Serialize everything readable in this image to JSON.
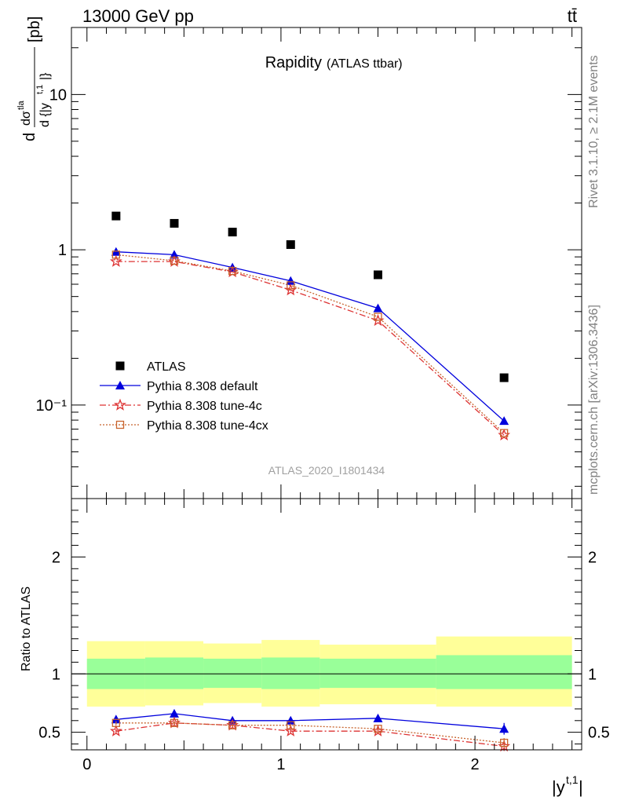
{
  "header": {
    "left": "13000 GeV pp",
    "right": "tt̄"
  },
  "side_text": {
    "top": "Rivet 3.1.10, ≥ 2.1M events",
    "bottom": "mcplots.cern.ch [arXiv:1306.3436]"
  },
  "colors": {
    "atlas": "#000000",
    "default": "#0000dd",
    "tune4c": "#dd3333",
    "tune4cx": "#c8642d",
    "band_inner": "#99ff99",
    "band_outer": "#ffff99"
  },
  "chart_data": [
    {
      "type": "scatter",
      "title": "Rapidity",
      "subtitle": "(ATLAS ttbar)",
      "ylabel": "dσ^{tla}/d{|y^{t,1}|} [pb]",
      "yscale": "log",
      "ylim": [
        0.025,
        27
      ],
      "xlim": [
        -0.08,
        2.55
      ],
      "y_ticks": [
        0.1,
        1,
        10
      ],
      "y_tick_labels": [
        "10⁻¹",
        "1",
        "10"
      ],
      "watermark": "ATLAS_2020_I1801434",
      "legend_position": "bottom-left",
      "x": [
        0.15,
        0.45,
        0.75,
        1.05,
        1.5,
        2.15
      ],
      "x_bins": [
        [
          0,
          0.3
        ],
        [
          0.3,
          0.6
        ],
        [
          0.6,
          0.9
        ],
        [
          0.9,
          1.2
        ],
        [
          1.2,
          1.8
        ],
        [
          1.8,
          2.5
        ]
      ],
      "series": [
        {
          "name": "ATLAS",
          "key": "atlas",
          "marker": "square",
          "values": [
            1.65,
            1.48,
            1.3,
            1.08,
            0.69,
            0.15
          ]
        },
        {
          "name": "Pythia 8.308 default",
          "key": "default",
          "marker": "triangle",
          "line": "solid",
          "values": [
            0.97,
            0.93,
            0.77,
            0.63,
            0.42,
            0.079
          ]
        },
        {
          "name": "Pythia 8.308 tune-4c",
          "key": "tune4c",
          "marker": "star",
          "line": "dashdot",
          "values": [
            0.84,
            0.84,
            0.72,
            0.55,
            0.35,
            0.064
          ]
        },
        {
          "name": "Pythia 8.308 tune-4cx",
          "key": "tune4cx",
          "marker": "opensquare",
          "line": "dotted",
          "values": [
            0.93,
            0.85,
            0.73,
            0.59,
            0.37,
            0.066
          ]
        }
      ]
    },
    {
      "type": "scatter",
      "ylabel": "Ratio to ATLAS",
      "xlabel": "|y^{t,1}|",
      "ylim": [
        0.35,
        2.5
      ],
      "y_ticks": [
        0.5,
        1,
        2
      ],
      "y_tick_labels": [
        "0.5",
        "1",
        "2"
      ],
      "x_ticks": [
        0,
        1,
        2
      ],
      "x_tick_labels": [
        "0",
        "1",
        "2"
      ],
      "reference_line": 1,
      "band_inner": [
        [
          0.87,
          1.13
        ],
        [
          0.87,
          1.14
        ],
        [
          0.88,
          1.13
        ],
        [
          0.87,
          1.14
        ],
        [
          0.88,
          1.13
        ],
        [
          0.87,
          1.16
        ]
      ],
      "band_outer": [
        [
          0.72,
          1.28
        ],
        [
          0.73,
          1.28
        ],
        [
          0.75,
          1.26
        ],
        [
          0.72,
          1.29
        ],
        [
          0.74,
          1.25
        ],
        [
          0.72,
          1.32
        ]
      ],
      "series": [
        {
          "name": "Pythia 8.308 default",
          "key": "default",
          "values": [
            0.61,
            0.66,
            0.6,
            0.6,
            0.62,
            0.53
          ],
          "errors": [
            0.02,
            0.015,
            0.02,
            0.02,
            0.015,
            0.05
          ]
        },
        {
          "name": "Pythia 8.308 tune-4c",
          "key": "tune4c",
          "values": [
            0.51,
            0.58,
            0.56,
            0.51,
            0.51,
            0.38
          ],
          "errors": [
            0.015,
            0.015,
            0.015,
            0.015,
            0.015,
            0.04
          ]
        },
        {
          "name": "Pythia 8.308 tune-4cx",
          "key": "tune4cx",
          "values": [
            0.58,
            0.58,
            0.56,
            0.56,
            0.53,
            0.41
          ],
          "errors": [
            0.015,
            0.015,
            0.015,
            0.015,
            0.015,
            0.04
          ]
        }
      ]
    }
  ]
}
